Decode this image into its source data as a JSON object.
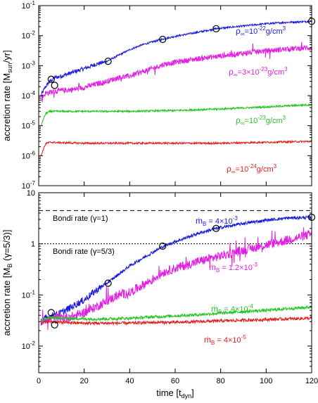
{
  "chart_data": [
    {
      "type": "line",
      "yscale": "log",
      "xlim": [
        0,
        120
      ],
      "ylim": [
        1e-07,
        0.1
      ],
      "ylabel": "accretion rate [M",
      "ylabel_sub": "sun",
      "ylabel_tail": "/yr]",
      "yticks": [
        {
          "value": 1e-07,
          "base": "10",
          "exp": "-7"
        },
        {
          "value": 1e-06,
          "base": "10",
          "exp": "-6"
        },
        {
          "value": 1e-05,
          "base": "10",
          "exp": "-5"
        },
        {
          "value": 0.0001,
          "base": "10",
          "exp": "-4"
        },
        {
          "value": 0.001,
          "base": "10",
          "exp": "-3"
        },
        {
          "value": 0.01,
          "base": "10",
          "exp": "-2"
        },
        {
          "value": 0.1,
          "base": "10",
          "exp": "-1"
        }
      ],
      "xticks": [
        0,
        20,
        40,
        60,
        80,
        100,
        120
      ],
      "series": [
        {
          "name": "ρ∞=10⁻²²g/cm³",
          "label_parts": [
            "ρ",
            "∞",
            "=10",
            "-22",
            "g/cm",
            "3"
          ],
          "color": "#1a1adf",
          "x": [
            1,
            3,
            5,
            7,
            10,
            15,
            20,
            25,
            30,
            35,
            40,
            45,
            50,
            55,
            60,
            70,
            78,
            90,
            100,
            110,
            120
          ],
          "y": [
            0.0001,
            0.0002,
            0.0003,
            0.0004,
            0.00045,
            0.0006,
            0.0008,
            0.0011,
            0.0014,
            0.0022,
            0.0034,
            0.0048,
            0.0062,
            0.0078,
            0.0095,
            0.013,
            0.017,
            0.021,
            0.025,
            0.028,
            0.03
          ]
        },
        {
          "name": "ρ∞=3×10⁻²³g/cm³",
          "label_parts": [
            "ρ",
            "∞",
            "=3×10",
            "-23",
            "g/cm",
            "3"
          ],
          "color": "#e21ee2",
          "x": [
            1,
            3,
            5,
            7,
            10,
            15,
            20,
            25,
            30,
            35,
            40,
            45,
            50,
            55,
            60,
            70,
            80,
            90,
            100,
            110,
            120
          ],
          "y": [
            8e-05,
            0.00012,
            0.00013,
            0.00014,
            0.00015,
            0.00016,
            0.00019,
            0.00024,
            0.0003,
            0.0004,
            0.00045,
            0.0006,
            0.0008,
            0.0011,
            0.0013,
            0.0017,
            0.0021,
            0.0026,
            0.0031,
            0.0036,
            0.004
          ]
        },
        {
          "name": "ρ∞=10⁻²³g/cm³",
          "label_parts": [
            "ρ",
            "∞",
            "=10",
            "-23",
            "g/cm",
            "3"
          ],
          "color": "#22c622",
          "x": [
            1,
            3,
            5,
            10,
            20,
            30,
            40,
            50,
            60,
            70,
            80,
            90,
            100,
            110,
            120
          ],
          "y": [
            1e-05,
            2.5e-05,
            3e-05,
            3e-05,
            3e-05,
            3e-05,
            3e-05,
            3.1e-05,
            3.2e-05,
            3.4e-05,
            3.6e-05,
            3.9e-05,
            4.2e-05,
            4.6e-05,
            5e-05
          ]
        },
        {
          "name": "ρ∞=10⁻²⁴g/cm³",
          "label_parts": [
            "ρ",
            "∞",
            "=10",
            "-24",
            "g/cm",
            "3"
          ],
          "color": "#e21e1e",
          "x": [
            1,
            3,
            5,
            10,
            20,
            30,
            40,
            50,
            60,
            70,
            80,
            90,
            100,
            110,
            120
          ],
          "y": [
            1e-06,
            2.5e-06,
            2.8e-06,
            2.7e-06,
            2.6e-06,
            2.6e-06,
            2.6e-06,
            2.6e-06,
            2.6e-06,
            2.6e-06,
            2.6e-06,
            2.7e-06,
            2.8e-06,
            2.9e-06,
            3e-06
          ]
        }
      ],
      "markers": {
        "x": [
          5.5,
          7,
          30.5,
          54.5,
          78,
          120
        ],
        "y": [
          0.00035,
          0.00022,
          0.0014,
          0.0075,
          0.017,
          0.03
        ]
      }
    },
    {
      "type": "line",
      "yscale": "log",
      "xlim": [
        0,
        120
      ],
      "ylim": [
        0.003,
        10
      ],
      "xlabel": "time [t",
      "xlabel_sub": "dyn",
      "xlabel_tail": "]",
      "ylabel": "accretion rate [M",
      "ylabel_sub": "B",
      "ylabel_tail": " (γ=5/3)]",
      "yticks": [
        {
          "value": 0.01,
          "base": "10",
          "exp": "-2"
        },
        {
          "value": 0.1,
          "base": "10",
          "exp": "-1"
        },
        {
          "value": 1,
          "base": "1",
          "exp": ""
        },
        {
          "value": 10,
          "base": "10",
          "exp": ""
        }
      ],
      "xticks": [
        0,
        20,
        40,
        60,
        80,
        100,
        120
      ],
      "reference_lines": [
        {
          "label": "Bondi rate (γ=1)",
          "value": 4.48,
          "dash": "6,4"
        },
        {
          "label": "Bondi rate (γ=5/3)",
          "value": 1.0,
          "dash": "2,2"
        }
      ],
      "series": [
        {
          "name": "ṁB = 4×10⁻³",
          "label_parts": [
            "ṁ",
            "B",
            " = 4×10",
            "-3"
          ],
          "color": "#1a1adf",
          "x": [
            1,
            3,
            5,
            7,
            10,
            15,
            20,
            25,
            30,
            35,
            40,
            45,
            50,
            55,
            60,
            70,
            78,
            90,
            100,
            110,
            120
          ],
          "y": [
            0.03,
            0.035,
            0.038,
            0.04,
            0.045,
            0.06,
            0.08,
            0.12,
            0.17,
            0.25,
            0.37,
            0.5,
            0.68,
            0.9,
            1.1,
            1.6,
            2.0,
            2.5,
            2.9,
            3.2,
            3.3
          ]
        },
        {
          "name": "ṁB = 1.2×10⁻³",
          "label_parts": [
            "ṁ",
            "B",
            " = 1.2×10",
            "-3"
          ],
          "color": "#e21ee2",
          "x": [
            1,
            3,
            5,
            7,
            10,
            15,
            20,
            25,
            30,
            35,
            40,
            45,
            50,
            55,
            60,
            70,
            80,
            90,
            100,
            110,
            120
          ],
          "y": [
            0.03,
            0.033,
            0.034,
            0.035,
            0.036,
            0.038,
            0.045,
            0.058,
            0.075,
            0.1,
            0.11,
            0.15,
            0.2,
            0.28,
            0.33,
            0.45,
            0.58,
            0.75,
            0.95,
            1.2,
            1.55
          ]
        },
        {
          "name": "ṁB = 4×10⁻⁴",
          "label_parts": [
            "ṁ",
            "B",
            " = 4×10",
            "-4"
          ],
          "color": "#22c622",
          "x": [
            1,
            3,
            5,
            10,
            20,
            30,
            40,
            50,
            60,
            70,
            80,
            90,
            100,
            110,
            120
          ],
          "y": [
            0.03,
            0.034,
            0.036,
            0.035,
            0.034,
            0.034,
            0.035,
            0.037,
            0.039,
            0.041,
            0.044,
            0.047,
            0.05,
            0.054,
            0.058
          ]
        },
        {
          "name": "ṁB = 4×10⁻⁵",
          "label_parts": [
            "ṁ",
            "B",
            " = 4×10",
            "-5"
          ],
          "color": "#e21e1e",
          "x": [
            1,
            3,
            5,
            10,
            20,
            30,
            40,
            50,
            60,
            70,
            80,
            90,
            100,
            110,
            120
          ],
          "y": [
            0.028,
            0.03,
            0.03,
            0.029,
            0.028,
            0.028,
            0.028,
            0.029,
            0.029,
            0.03,
            0.031,
            0.032,
            0.033,
            0.034,
            0.035
          ]
        }
      ],
      "markers": {
        "x": [
          5.5,
          7,
          30.5,
          54.5,
          78,
          120
        ],
        "y": [
          0.045,
          0.026,
          0.17,
          0.9,
          2.0,
          3.3
        ]
      }
    }
  ]
}
